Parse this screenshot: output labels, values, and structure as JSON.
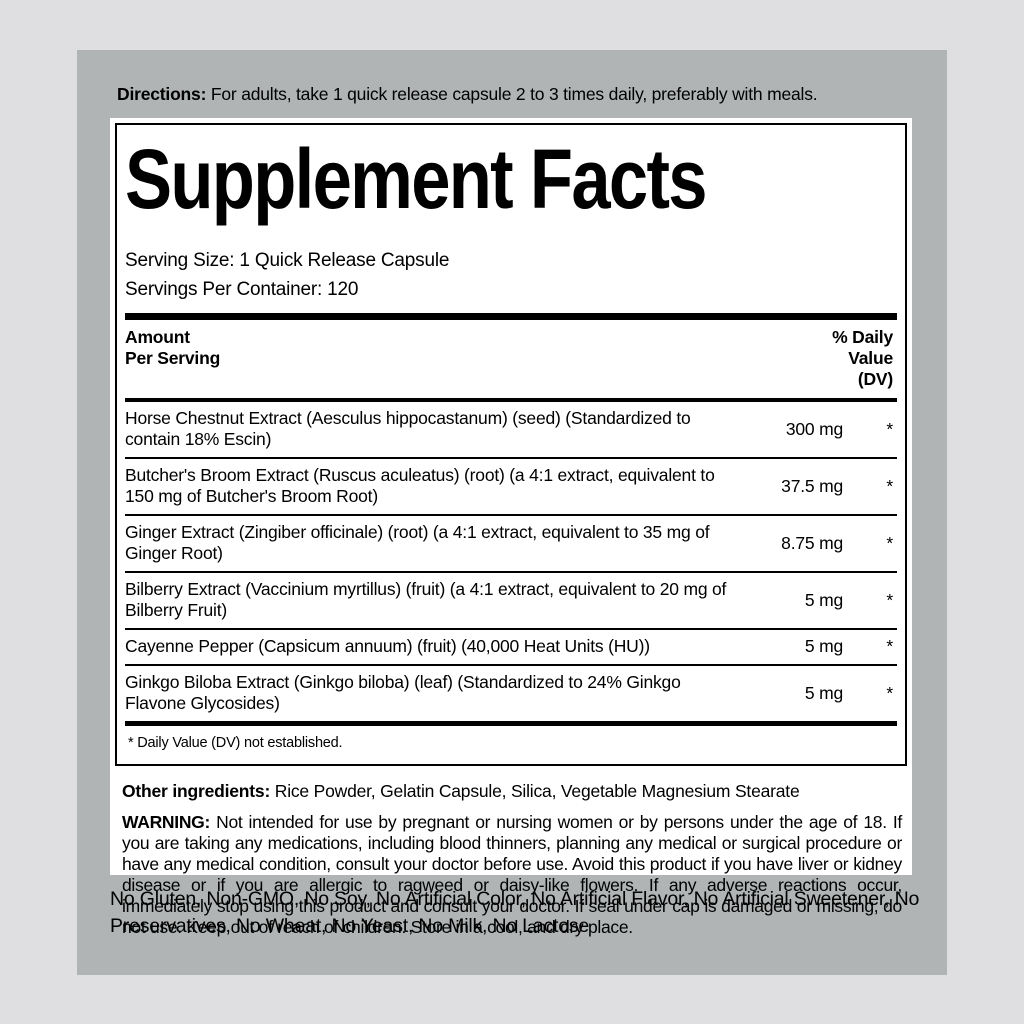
{
  "colors": {
    "page_bg": "#dfdfe1",
    "panel_bg": "#b0b4b4",
    "label_bg": "#ffffff",
    "text": "#000000"
  },
  "directions": {
    "label": "Directions:",
    "text": " For adults, take 1 quick release capsule 2 to 3 times daily, preferably with meals."
  },
  "supplement_facts": {
    "title": "Supplement Facts",
    "serving_size": "Serving Size: 1 Quick Release Capsule",
    "servings_per_container": "Servings Per Container: 120",
    "header": {
      "amount_line1": "Amount",
      "amount_line2": "Per Serving",
      "dv_line1": "% Daily",
      "dv_line2": "Value",
      "dv_line3": "(DV)"
    },
    "rows": [
      {
        "name": "Horse Chestnut Extract (Aesculus hippocastanum) (seed) (Standardized to contain 18% Escin)",
        "amount": "300 mg",
        "dv": "*"
      },
      {
        "name": "Butcher's Broom Extract (Ruscus aculeatus) (root) (a 4:1 extract, equivalent to 150 mg of Butcher's Broom Root)",
        "amount": "37.5 mg",
        "dv": "*"
      },
      {
        "name": "Ginger Extract (Zingiber officinale) (root) (a 4:1 extract, equivalent to 35 mg of Ginger Root)",
        "amount": "8.75 mg",
        "dv": "*"
      },
      {
        "name": "Bilberry Extract (Vaccinium myrtillus) (fruit) (a 4:1 extract, equivalent to 20 mg of Bilberry Fruit)",
        "amount": "5 mg",
        "dv": "*"
      },
      {
        "name": "Cayenne Pepper (Capsicum annuum) (fruit) (40,000 Heat Units (HU))",
        "amount": "5 mg",
        "dv": "*"
      },
      {
        "name": "Ginkgo Biloba Extract (Ginkgo biloba) (leaf) (Standardized to 24% Ginkgo Flavone Glycosides)",
        "amount": "5 mg",
        "dv": "*"
      }
    ],
    "footnote": "* Daily Value (DV) not established."
  },
  "other_ingredients": {
    "label": "Other ingredients:",
    "text": " Rice Powder, Gelatin Capsule, Silica, Vegetable Magnesium Stearate"
  },
  "warning": {
    "label": "WARNING:",
    "text": " Not intended for use by pregnant or nursing women or by persons under the age of 18. If you are taking any medications, including blood thinners, planning any medical or surgical procedure or have any medical condition, consult your doctor before use. Avoid this product if you have liver or kidney disease or if you are allergic to ragweed or daisy-like flowers. If any adverse reactions occur, immediately stop using this product and consult your doctor. If seal under cap is damaged or missing, do not use. Keep out of reach of children. Store in a cool, and dry place."
  },
  "claims": "No Gluten, Non-GMO, No Soy, No Artificial Color, No Artificial Flavor, No Artificial Sweetener, No Preservatives, No Wheat, No Yeast, No Milk, No Lactose"
}
